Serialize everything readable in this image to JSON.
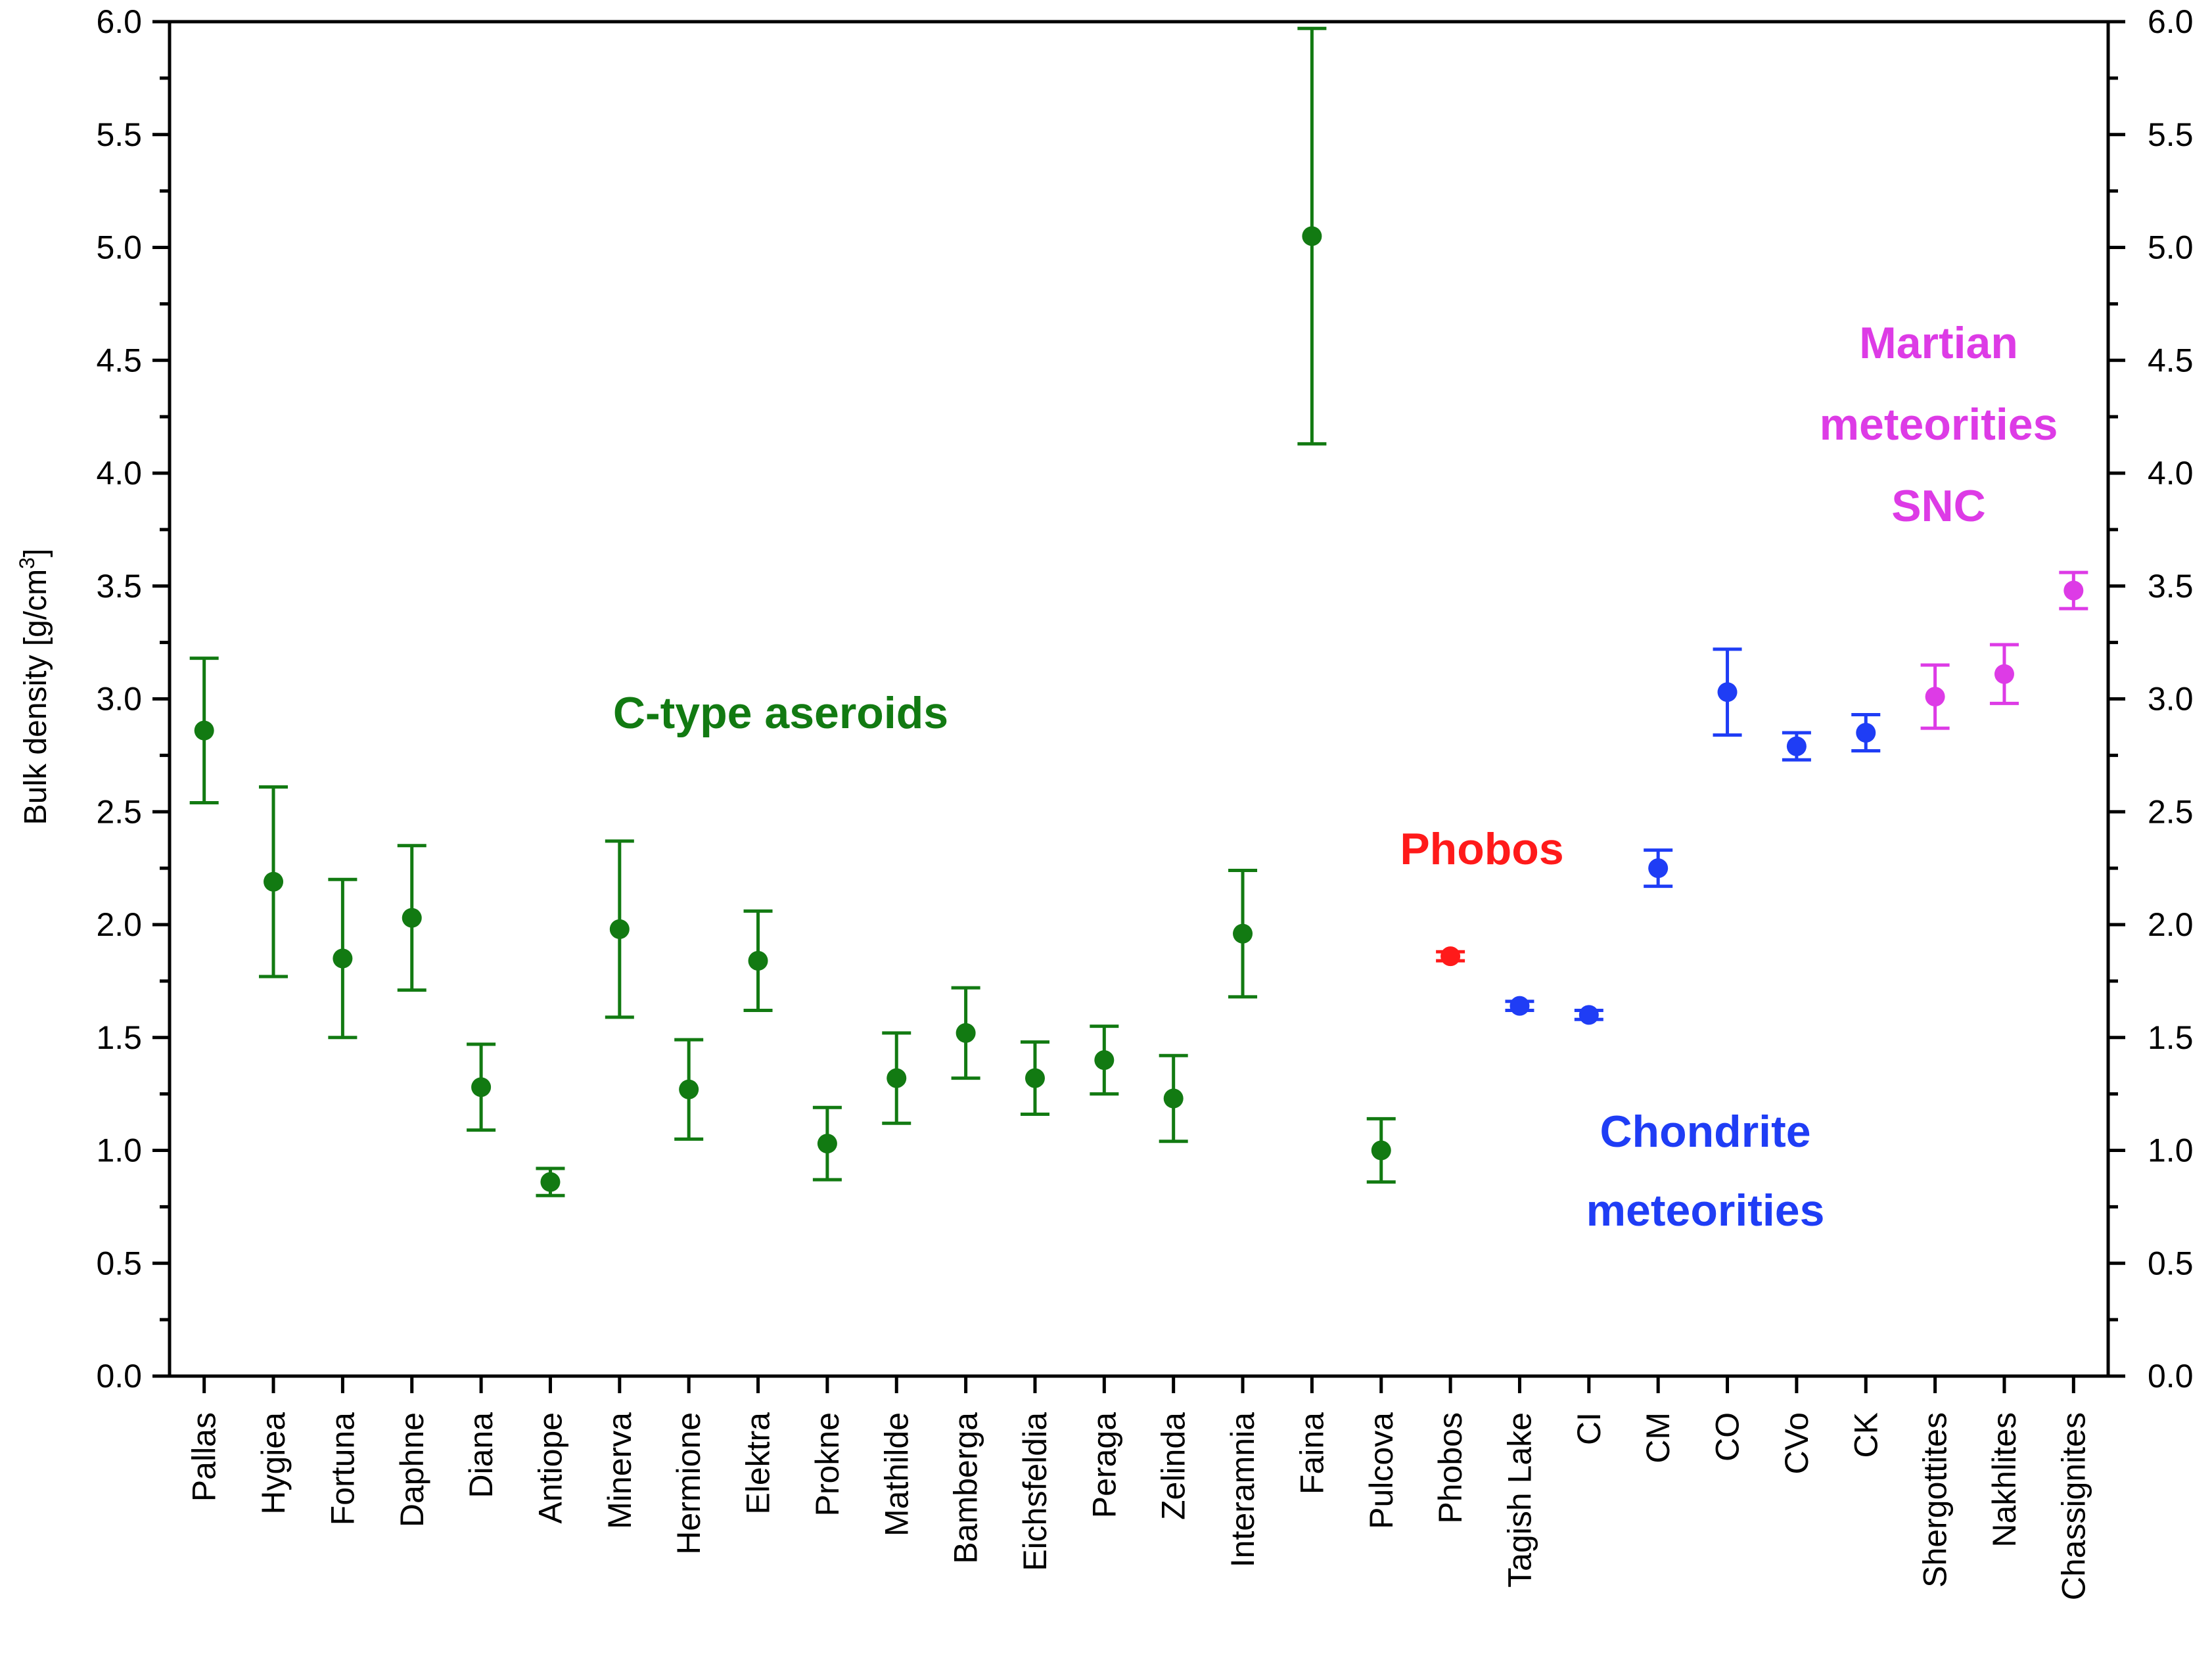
{
  "chart_data": {
    "type": "scatter",
    "ylabel": "Bulk density [g/cm",
    "ylabel_sup": "3",
    "ylabel_close": "]",
    "ylim": [
      0.0,
      6.0
    ],
    "yticks": [
      "0.0",
      "0.5",
      "1.0",
      "1.5",
      "2.0",
      "2.5",
      "3.0",
      "3.5",
      "4.0",
      "4.5",
      "5.0",
      "5.5",
      "6.0"
    ],
    "right_axis_mirrors_left": true,
    "grid": false,
    "colors": {
      "c_type": "#127a12",
      "phobos": "#ff1a1a",
      "chondrite": "#1f3df5",
      "martian": "#dd3be6"
    },
    "categories": [
      "Pallas",
      "Hygiea",
      "Fortuna",
      "Daphne",
      "Diana",
      "Antiope",
      "Minerva",
      "Hermione",
      "Elektra",
      "Prokne",
      "Mathilde",
      "Bamberga",
      "Eichsfeldia",
      "Peraga",
      "Zelinda",
      "Interamnia",
      "Faina",
      "Pulcova",
      "Phobos",
      "Tagish Lake",
      "CI",
      "CM",
      "CO",
      "CVo",
      "CK",
      "Shergottites",
      "Nakhlites",
      "Chassignites"
    ],
    "series": [
      {
        "group": "c_type",
        "x": [
          "Pallas",
          "Hygiea",
          "Fortuna",
          "Daphne",
          "Diana",
          "Antiope",
          "Minerva",
          "Hermione",
          "Elektra",
          "Prokne",
          "Mathilde",
          "Bamberga",
          "Eichsfeldia",
          "Peraga",
          "Zelinda",
          "Interamnia",
          "Faina",
          "Pulcova"
        ],
        "values": [
          2.86,
          2.19,
          1.85,
          2.03,
          1.28,
          0.86,
          1.98,
          1.27,
          1.84,
          1.03,
          1.32,
          1.52,
          1.32,
          1.4,
          1.23,
          1.96,
          5.05,
          1.0
        ],
        "err_low": [
          2.54,
          1.77,
          1.5,
          1.71,
          1.09,
          0.8,
          1.59,
          1.05,
          1.62,
          0.87,
          1.12,
          1.32,
          1.16,
          1.25,
          1.04,
          1.68,
          4.13,
          0.86
        ],
        "err_high": [
          3.18,
          2.61,
          2.2,
          2.35,
          1.47,
          0.92,
          2.37,
          1.49,
          2.06,
          1.19,
          1.52,
          1.72,
          1.48,
          1.55,
          1.42,
          2.24,
          5.97,
          1.14
        ]
      },
      {
        "group": "phobos",
        "x": [
          "Phobos"
        ],
        "values": [
          1.86
        ],
        "err_low": [
          1.84
        ],
        "err_high": [
          1.88
        ]
      },
      {
        "group": "chondrite",
        "x": [
          "Tagish Lake",
          "CI",
          "CM",
          "CO",
          "CVo",
          "CK"
        ],
        "values": [
          1.64,
          1.6,
          2.25,
          3.03,
          2.79,
          2.85
        ],
        "err_low": [
          1.62,
          1.58,
          2.17,
          2.84,
          2.73,
          2.77
        ],
        "err_high": [
          1.66,
          1.62,
          2.33,
          3.22,
          2.85,
          2.93
        ]
      },
      {
        "group": "martian",
        "x": [
          "Shergottites",
          "Nakhlites",
          "Chassignites"
        ],
        "values": [
          3.01,
          3.11,
          3.48
        ],
        "err_low": [
          2.87,
          2.98,
          3.4
        ],
        "err_high": [
          3.15,
          3.24,
          3.56
        ]
      }
    ],
    "annotations": [
      {
        "group": "c_type",
        "lines": [
          "C-type aseroids"
        ]
      },
      {
        "group": "phobos",
        "lines": [
          "Phobos"
        ]
      },
      {
        "group": "chondrite",
        "lines": [
          "Chondrite",
          "meteorities"
        ]
      },
      {
        "group": "martian",
        "lines": [
          "Martian",
          "meteorities",
          "SNC"
        ]
      }
    ]
  }
}
